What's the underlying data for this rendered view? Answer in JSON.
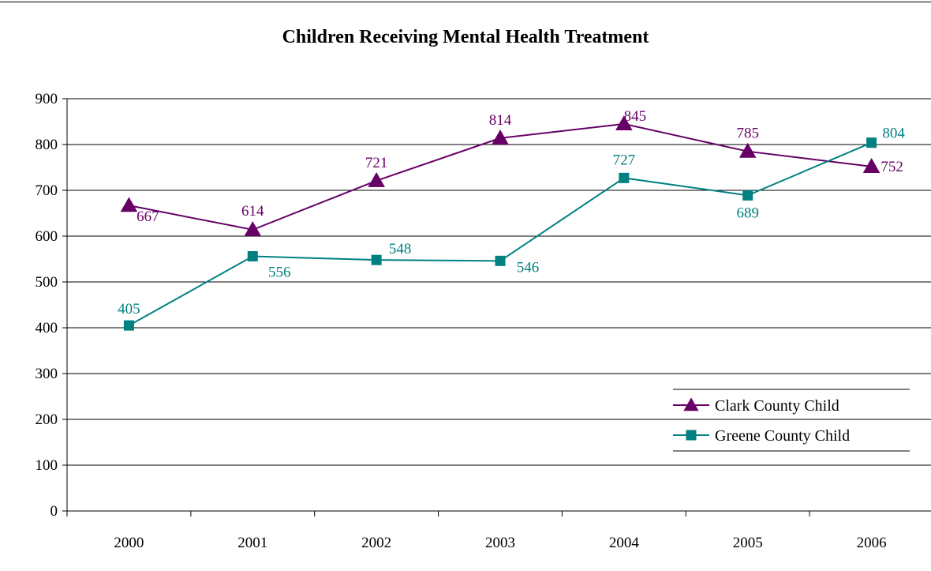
{
  "chart_data": {
    "type": "line",
    "title": "Children Receiving Mental Health Treatment",
    "xlabel": "",
    "ylabel": "",
    "categories": [
      "2000",
      "2001",
      "2002",
      "2003",
      "2004",
      "2005",
      "2006"
    ],
    "ylim": [
      0,
      900
    ],
    "yticks": [
      0,
      100,
      200,
      300,
      400,
      500,
      600,
      700,
      800,
      900
    ],
    "grid": true,
    "legend_position": "right",
    "series": [
      {
        "name": "Clark County Child",
        "marker": "triangle",
        "color": "#660066",
        "values": [
          667,
          614,
          721,
          814,
          845,
          785,
          752
        ],
        "labels": [
          "667",
          "614",
          "721",
          "814",
          "845",
          "785",
          "752"
        ]
      },
      {
        "name": "Greene County Child",
        "marker": "square",
        "color": "#008080",
        "values": [
          405,
          556,
          548,
          546,
          727,
          689,
          804
        ],
        "labels": [
          "405",
          "556",
          "548",
          "546",
          "727",
          "689",
          "804"
        ]
      }
    ]
  }
}
